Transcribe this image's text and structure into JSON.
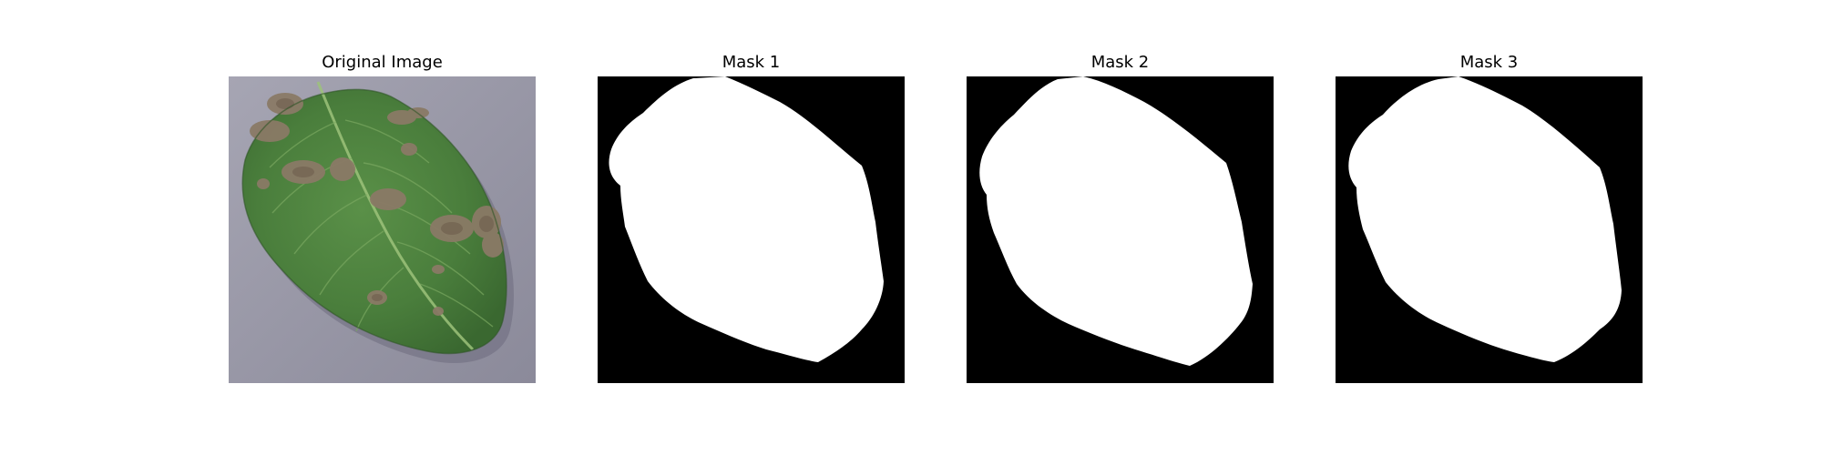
{
  "figure": {
    "panels": [
      {
        "title": "Original Image",
        "content": "leaf-photo"
      },
      {
        "title": "Mask 1",
        "content": "binary-mask"
      },
      {
        "title": "Mask 2",
        "content": "binary-mask"
      },
      {
        "title": "Mask 3",
        "content": "binary-mask"
      }
    ]
  },
  "colors": {
    "background": "#ffffff",
    "mask_foreground": "#ffffff",
    "mask_background": "#000000",
    "photo_backdrop": "#9b9aa8",
    "leaf_green": "#4a8040",
    "leaf_vein": "#8fb86a",
    "lesion_brown": "#8a7a68"
  }
}
